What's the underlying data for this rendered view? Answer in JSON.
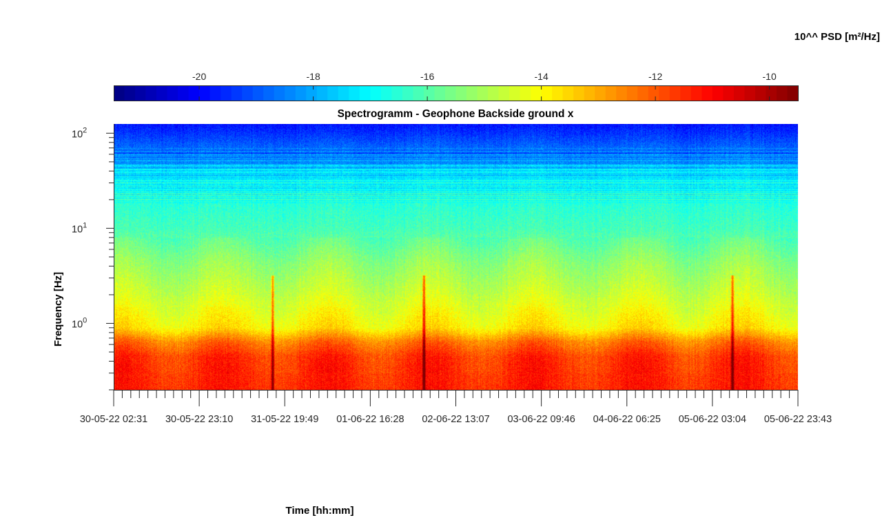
{
  "chart_data": {
    "type": "heatmap",
    "title": "Spectrogramm - Geophone Backside ground x",
    "xlabel": "Time [hh:mm]",
    "ylabel": "Frequency [Hz]",
    "y_scale": "log",
    "ylim": [
      0.2,
      125
    ],
    "y_ticks": [
      {
        "value": 100,
        "base": "10",
        "exp": "2"
      },
      {
        "value": 10,
        "base": "10",
        "exp": "1"
      },
      {
        "value": 1,
        "base": "10",
        "exp": "0"
      }
    ],
    "x_ticks": [
      "30-05-22 02:31",
      "30-05-22 23:10",
      "31-05-22 19:49",
      "01-06-22 16:28",
      "02-06-22 13:07",
      "03-06-22 09:46",
      "04-06-22 06:25",
      "05-06-22 03:04",
      "05-06-22 23:43"
    ],
    "colorbar": {
      "label": "10^^ PSD [m²/Hz]",
      "colormap": "jet",
      "range": [
        -21.5,
        -9.5
      ],
      "ticks": [
        "-20",
        "-18",
        "-16",
        "-14",
        "-12",
        "-10"
      ],
      "tick_values": [
        -20,
        -18,
        -16,
        -14,
        -12,
        -10
      ]
    },
    "features": {
      "background_profile_log10_psd": [
        {
          "freq_hz": 0.2,
          "psd": -11.4
        },
        {
          "freq_hz": 0.45,
          "psd": -11.6
        },
        {
          "freq_hz": 0.65,
          "psd": -12.4
        },
        {
          "freq_hz": 0.9,
          "psd": -13.8
        },
        {
          "freq_hz": 2.0,
          "psd": -14.6
        },
        {
          "freq_hz": 4.5,
          "psd": -15.3
        },
        {
          "freq_hz": 10,
          "psd": -16.2
        },
        {
          "freq_hz": 30,
          "psd": -16.8
        },
        {
          "freq_hz": 60,
          "psd": -18.5
        },
        {
          "freq_hz": 125,
          "psd": -19.8
        }
      ],
      "transient_events_x_fraction": [
        0.232,
        0.453,
        0.904
      ]
    }
  }
}
